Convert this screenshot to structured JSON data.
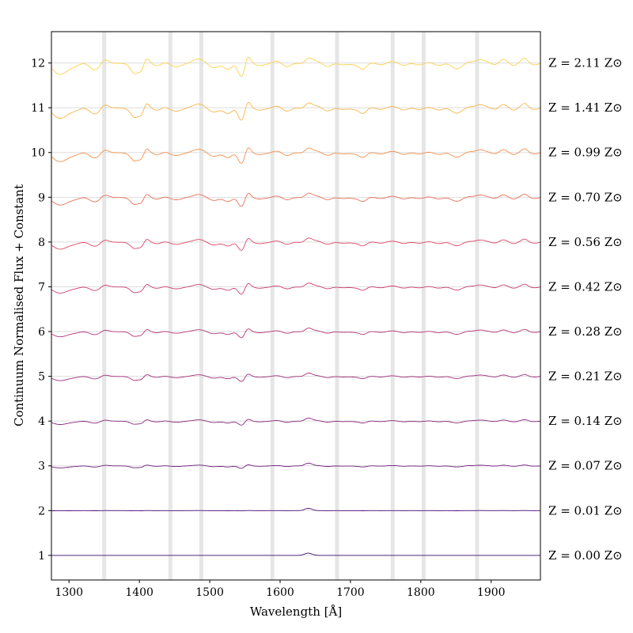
{
  "chart_data": {
    "type": "line",
    "title": "",
    "xlabel": "Wavelength [Å]",
    "ylabel": "Continuum Normalised Flux + Constant",
    "xlim": [
      1275,
      1970
    ],
    "ylim": [
      0.45,
      12.7
    ],
    "xticks": [
      1300,
      1400,
      1500,
      1600,
      1700,
      1800,
      1900
    ],
    "yticks": [
      1,
      2,
      3,
      4,
      5,
      6,
      7,
      8,
      9,
      10,
      11,
      12
    ],
    "grid": "horizontal",
    "highlight_bands": [
      1350,
      1444,
      1488,
      1589,
      1681,
      1760,
      1804,
      1880
    ],
    "series": [
      {
        "label": "Z = 0.00 Z⊙",
        "z_value": "0.00",
        "offset": 1,
        "strength": 0.0,
        "color": "#3b0f70"
      },
      {
        "label": "Z = 0.01 Z⊙",
        "z_value": "0.01",
        "offset": 2,
        "strength": 0.02,
        "color": "#51127c"
      },
      {
        "label": "Z = 0.07 Z⊙",
        "z_value": "0.07",
        "offset": 3,
        "strength": 0.18,
        "color": "#721f81"
      },
      {
        "label": "Z = 0.14 Z⊙",
        "z_value": "0.14",
        "offset": 4,
        "strength": 0.3,
        "color": "#8c2981"
      },
      {
        "label": "Z = 0.21 Z⊙",
        "z_value": "0.21",
        "offset": 5,
        "strength": 0.38,
        "color": "#a3307e"
      },
      {
        "label": "Z = 0.28 Z⊙",
        "z_value": "0.28",
        "offset": 6,
        "strength": 0.46,
        "color": "#b73779"
      },
      {
        "label": "Z = 0.42 Z⊙",
        "z_value": "0.42",
        "offset": 7,
        "strength": 0.55,
        "color": "#c94072"
      },
      {
        "label": "Z = 0.56 Z⊙",
        "z_value": "0.56",
        "offset": 8,
        "strength": 0.62,
        "color": "#de4968"
      },
      {
        "label": "Z = 0.70 Z⊙",
        "z_value": "0.70",
        "offset": 9,
        "strength": 0.68,
        "color": "#e8705a"
      },
      {
        "label": "Z = 0.99 Z⊙",
        "z_value": "0.99",
        "offset": 10,
        "strength": 0.8,
        "color": "#f3904f"
      },
      {
        "label": "Z = 1.41 Z⊙",
        "z_value": "1.41",
        "offset": 11,
        "strength": 0.92,
        "color": "#f8b54a"
      },
      {
        "label": "Z = 2.11 Z⊙",
        "z_value": "2.11",
        "offset": 12,
        "strength": 1.0,
        "color": "#fbd24e"
      }
    ],
    "features": [
      {
        "center": 1290,
        "width": 14,
        "depth": 0.22
      },
      {
        "center": 1335,
        "width": 8,
        "depth": 0.12
      },
      {
        "center": 1350,
        "width": 5,
        "depth": -0.08
      },
      {
        "center": 1380,
        "width": 8,
        "depth": 0.05
      },
      {
        "center": 1393,
        "width": 5,
        "depth": 0.18
      },
      {
        "center": 1403,
        "width": 4,
        "depth": 0.16
      },
      {
        "center": 1410,
        "width": 4,
        "depth": -0.12
      },
      {
        "center": 1427,
        "width": 6,
        "depth": 0.08
      },
      {
        "center": 1456,
        "width": 8,
        "depth": 0.06
      },
      {
        "center": 1480,
        "width": 9,
        "depth": -0.06
      },
      {
        "center": 1507,
        "width": 7,
        "depth": 0.08
      },
      {
        "center": 1526,
        "width": 6,
        "depth": 0.12
      },
      {
        "center": 1545,
        "width": 5,
        "depth": 0.35
      },
      {
        "center": 1554,
        "width": 4,
        "depth": -0.2
      },
      {
        "center": 1570,
        "width": 5,
        "depth": 0.05
      },
      {
        "center": 1609,
        "width": 6,
        "depth": 0.07
      },
      {
        "center": 1640,
        "width": 5,
        "depth": -0.07
      },
      {
        "center": 1668,
        "width": 6,
        "depth": 0.07
      },
      {
        "center": 1706,
        "width": 7,
        "depth": 0.08
      },
      {
        "center": 1718,
        "width": 5,
        "depth": 0.12
      },
      {
        "center": 1777,
        "width": 6,
        "depth": 0.06
      },
      {
        "center": 1825,
        "width": 8,
        "depth": 0.06
      },
      {
        "center": 1850,
        "width": 8,
        "depth": 0.09
      },
      {
        "center": 1883,
        "width": 6,
        "depth": -0.06
      },
      {
        "center": 1916,
        "width": 5,
        "depth": -0.08
      },
      {
        "center": 1932,
        "width": 5,
        "depth": 0.06
      },
      {
        "center": 1948,
        "width": 4,
        "depth": -0.08
      }
    ],
    "he_emission": {
      "center": 1640,
      "width": 5,
      "height": 0.05
    }
  }
}
